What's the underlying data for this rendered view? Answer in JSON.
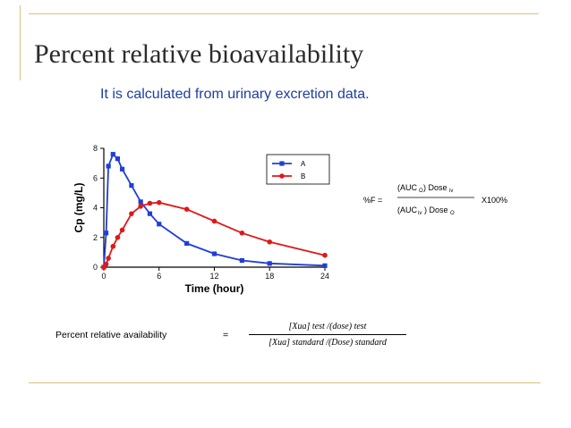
{
  "slide": {
    "title": "Percent relative bioavailability",
    "subtitle": "It is calculated from urinary excretion data."
  },
  "chart_data": {
    "type": "line",
    "xlabel": "Time (hour)",
    "ylabel": "Cp (mg/L)",
    "xlim": [
      0,
      24
    ],
    "ylim": [
      0,
      8
    ],
    "xticks": [
      "0",
      "6",
      "12",
      "18",
      "24"
    ],
    "yticks": [
      "0",
      "2",
      "4",
      "6",
      "8"
    ],
    "grid": false,
    "legend_position": "top-right",
    "series": [
      {
        "name": "A",
        "color": "#1f3fd6",
        "marker": "square",
        "x": [
          0,
          0.25,
          0.5,
          1,
          1.5,
          2,
          3,
          4,
          5,
          6,
          9,
          12,
          15,
          18,
          24
        ],
        "y": [
          0,
          2.3,
          6.8,
          7.6,
          7.3,
          6.6,
          5.5,
          4.4,
          3.6,
          2.9,
          1.6,
          0.9,
          0.45,
          0.25,
          0.1
        ]
      },
      {
        "name": "B",
        "color": "#e01818",
        "marker": "circle",
        "x": [
          0,
          0.25,
          0.5,
          1,
          1.5,
          2,
          3,
          4,
          5,
          6,
          9,
          12,
          15,
          18,
          24
        ],
        "y": [
          0,
          0.2,
          0.6,
          1.4,
          2.0,
          2.5,
          3.6,
          4.1,
          4.3,
          4.35,
          3.9,
          3.1,
          2.3,
          1.7,
          0.8
        ]
      }
    ]
  },
  "formula_image": {
    "lhs": "%F =",
    "num_open": "(AUC",
    "num_sub1": "O",
    "num_rest": ") Dose",
    "num_sub2": "iv",
    "den_open": "(AUC",
    "den_sub1": "iv",
    "den_rest": ") Dose",
    "den_sub2": "O",
    "multiplier": "X100%"
  },
  "relative_availability": {
    "label": "Percent relative availability",
    "equals": "=",
    "numerator": "[Xua] test /(dose) test",
    "denominator": "[Xua] standard /(Dose) standard"
  }
}
